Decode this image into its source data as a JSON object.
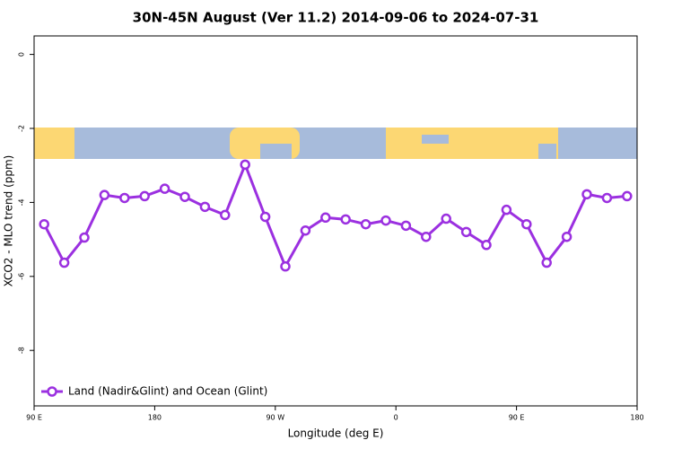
{
  "chart_data": {
    "type": "line",
    "title": "30N-45N August (Ver 11.2)   2014-09-06 to 2024-07-31",
    "xlabel": "Longitude (deg E)",
    "ylabel": "XCO2 - MLO trend (ppm)",
    "x": [
      97.5,
      112.5,
      127.5,
      142.5,
      157.5,
      172.5,
      187.5,
      202.5,
      217.5,
      232.5,
      247.5,
      262.5,
      277.5,
      292.5,
      307.5,
      322.5,
      337.5,
      352.5,
      367.5,
      382.5,
      397.5,
      412.5,
      427.5,
      442.5,
      457.5,
      472.5,
      487.5,
      502.5,
      517.5,
      532.5
    ],
    "series": [
      {
        "name": "Land (Nadir&Glint) and Ocean (Glint)",
        "color": "#9b30e0",
        "values": [
          -4.59,
          -5.63,
          -4.95,
          -3.8,
          -3.88,
          -3.83,
          -3.63,
          -3.85,
          -4.12,
          -4.34,
          -2.98,
          -4.39,
          -5.73,
          -4.76,
          -4.41,
          -4.46,
          -4.59,
          -4.49,
          -4.63,
          -4.93,
          -4.44,
          -4.8,
          -5.15,
          -4.2,
          -4.59,
          -5.63,
          -4.93,
          -3.78,
          -3.88,
          -3.83
        ]
      }
    ],
    "xlim": [
      90,
      540
    ],
    "xticks": [
      {
        "value": 90,
        "label": "90 E"
      },
      {
        "value": 180,
        "label": "180"
      },
      {
        "value": 270,
        "label": "90 W"
      },
      {
        "value": 360,
        "label": "0"
      },
      {
        "value": 450,
        "label": "90 E"
      },
      {
        "value": 540,
        "label": "180"
      }
    ],
    "ylim": [
      -9.5,
      0.5
    ],
    "yticks": [
      0,
      -2,
      -4,
      -6,
      -8
    ],
    "legend": "bottomleft",
    "grid": false
  }
}
